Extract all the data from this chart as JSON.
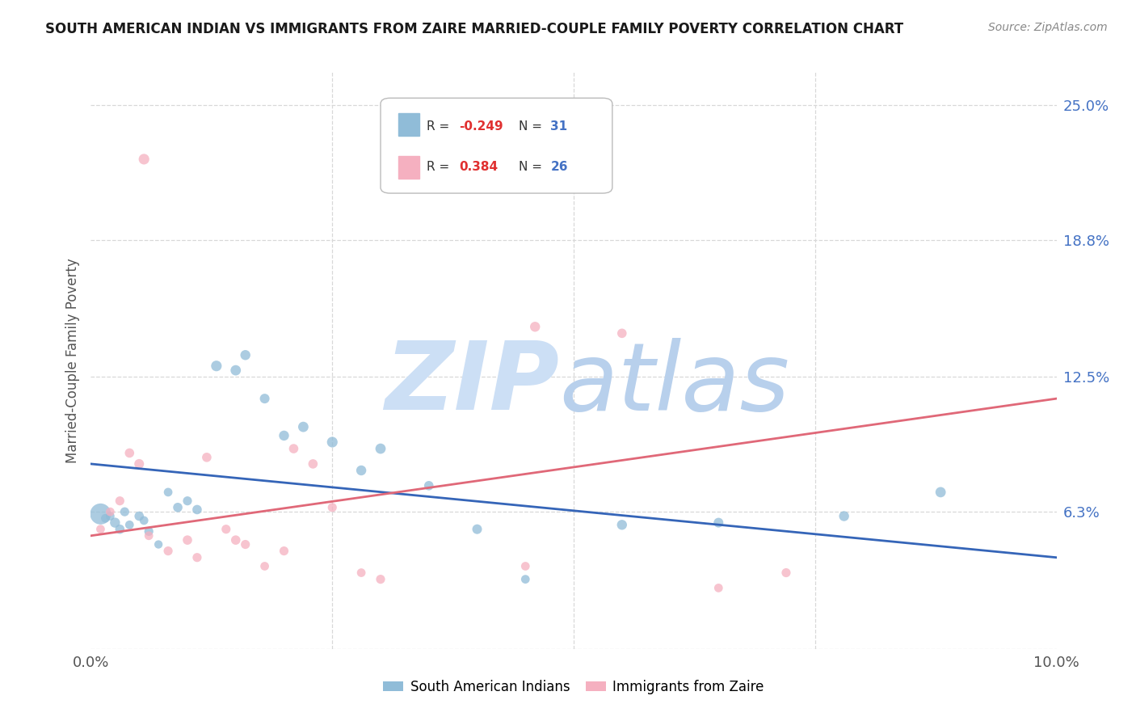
{
  "title": "SOUTH AMERICAN INDIAN VS IMMIGRANTS FROM ZAIRE MARRIED-COUPLE FAMILY POVERTY CORRELATION CHART",
  "source": "Source: ZipAtlas.com",
  "ylabel": "Married-Couple Family Poverty",
  "xlim": [
    0.0,
    10.0
  ],
  "ylim": [
    0.0,
    26.5
  ],
  "ytick_vals": [
    0.0,
    6.3,
    12.5,
    18.8,
    25.0
  ],
  "ytick_labels": [
    "",
    "6.3%",
    "12.5%",
    "18.8%",
    "25.0%"
  ],
  "xtick_vals": [
    0.0,
    2.5,
    5.0,
    7.5,
    10.0
  ],
  "xtick_labels": [
    "0.0%",
    "",
    "",
    "",
    "10.0%"
  ],
  "blue_label": "South American Indians",
  "pink_label": "Immigrants from Zaire",
  "blue_R": -0.249,
  "blue_N": 31,
  "pink_R": 0.384,
  "pink_N": 26,
  "blue_color": "#90bcd8",
  "pink_color": "#f5b0c0",
  "blue_line_color": "#3565b8",
  "pink_line_color": "#e06878",
  "grid_color": "#d8d8d8",
  "title_color": "#1a1a1a",
  "source_color": "#888888",
  "axis_label_color": "#555555",
  "ytick_color": "#4472c4",
  "legend_R_color": "#e03030",
  "legend_N_color": "#4472c4",
  "legend_label_color": "#333333",
  "bg_color": "#ffffff",
  "watermark_zip_color": "#ccdff5",
  "watermark_atlas_color": "#b8d0ec",
  "blue_line_y0": 8.5,
  "blue_line_y1": 4.2,
  "pink_line_y0": 5.2,
  "pink_line_y1": 11.5,
  "figsize": [
    14.06,
    8.92
  ],
  "dpi": 100,
  "blue_x": [
    0.1,
    0.15,
    0.2,
    0.25,
    0.3,
    0.35,
    0.4,
    0.5,
    0.55,
    0.6,
    0.7,
    0.8,
    0.9,
    1.0,
    1.1,
    1.3,
    1.5,
    1.6,
    1.8,
    2.0,
    2.2,
    2.5,
    2.8,
    3.0,
    3.5,
    4.0,
    4.5,
    5.5,
    6.5,
    7.8,
    8.8
  ],
  "blue_y": [
    6.2,
    6.0,
    6.1,
    5.8,
    5.5,
    6.3,
    5.7,
    6.1,
    5.9,
    5.4,
    4.8,
    7.2,
    6.5,
    6.8,
    6.4,
    13.0,
    12.8,
    13.5,
    11.5,
    9.8,
    10.2,
    9.5,
    8.2,
    9.2,
    7.5,
    5.5,
    3.2,
    5.7,
    5.8,
    6.1,
    7.2
  ],
  "blue_s": [
    350,
    60,
    60,
    80,
    70,
    65,
    60,
    70,
    60,
    65,
    55,
    60,
    70,
    65,
    70,
    90,
    85,
    80,
    75,
    80,
    85,
    90,
    80,
    85,
    70,
    75,
    60,
    80,
    75,
    80,
    85
  ],
  "pink_x": [
    0.1,
    0.2,
    0.3,
    0.4,
    0.5,
    0.6,
    0.8,
    1.0,
    1.1,
    1.2,
    1.4,
    1.5,
    1.6,
    1.8,
    2.0,
    2.1,
    2.3,
    2.5,
    2.8,
    3.0,
    4.5,
    5.5,
    6.5,
    7.2,
    0.55,
    4.6
  ],
  "pink_y": [
    5.5,
    6.3,
    6.8,
    9.0,
    8.5,
    5.2,
    4.5,
    5.0,
    4.2,
    8.8,
    5.5,
    5.0,
    4.8,
    3.8,
    4.5,
    9.2,
    8.5,
    6.5,
    3.5,
    3.2,
    3.8,
    14.5,
    2.8,
    3.5,
    22.5,
    14.8
  ],
  "pink_s": [
    60,
    60,
    65,
    70,
    75,
    60,
    65,
    70,
    65,
    70,
    65,
    70,
    65,
    60,
    65,
    70,
    70,
    65,
    60,
    65,
    60,
    70,
    60,
    65,
    90,
    80
  ]
}
